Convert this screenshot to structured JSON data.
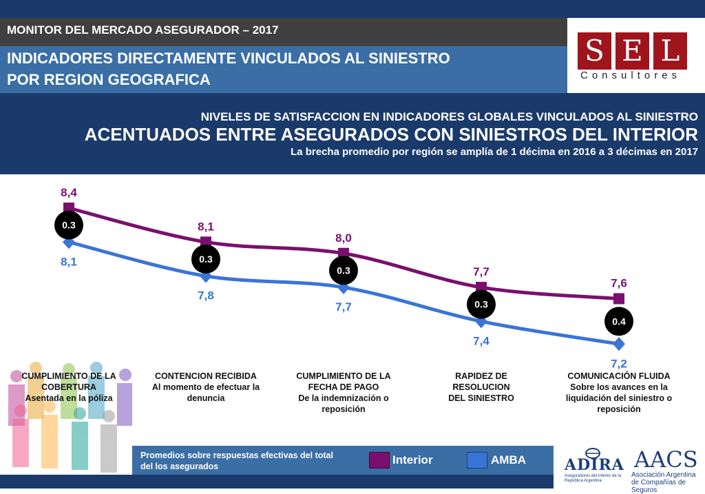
{
  "header": {
    "monitor": "MONITOR DEL MERCADO ASEGURADOR – 2017",
    "title_line1": "INDICADORES DIRECTAMENTE VINCULADOS AL SINIESTRO",
    "title_line2": "POR REGION GEOGRAFICA"
  },
  "logo": {
    "letters": [
      "S",
      "E",
      "L"
    ],
    "subtitle": "Consultores"
  },
  "subheader": {
    "line1": "NIVELES DE SATISFACCION EN INDICADORES GLOBALES VINCULADOS AL SINIESTRO",
    "line2": "ACENTUADOS ENTRE ASEGURADOS CON SINIESTROS DEL INTERIOR",
    "line3": "La brecha promedio por región se amplía de 1 décima en 2016 a 3 décimas en 2017"
  },
  "chart_data": {
    "type": "line",
    "categories": [
      {
        "title": "CUMPLIMIENTO DE LA COBERTURA",
        "detail": "Asentada en la póliza"
      },
      {
        "title": "CONTENCION RECIBIDA",
        "detail": "Al momento de efectuar la denuncia"
      },
      {
        "title": "CUMPLIMIENTO DE LA FECHA DE PAGO",
        "detail": "De la indemnización o reposición"
      },
      {
        "title": "RAPIDEZ DE RESOLUCION",
        "detail": "DEL SINIESTRO"
      },
      {
        "title": "COMUNICACIÓN FLUIDA",
        "detail": "Sobre los avances en la liquidación del siniestro o reposición"
      }
    ],
    "series": [
      {
        "name": "Interior",
        "color": "#7a0f6e",
        "marker": "square",
        "values": [
          8.4,
          8.1,
          8.0,
          7.7,
          7.6
        ],
        "labels": [
          "8,4",
          "8,1",
          "8,0",
          "7,7",
          "7,6"
        ]
      },
      {
        "name": "AMBA",
        "color": "#3a74d6",
        "marker": "diamond",
        "values": [
          8.1,
          7.8,
          7.7,
          7.4,
          7.2
        ],
        "labels": [
          "8,1",
          "7,8",
          "7,7",
          "7,4",
          "7,2"
        ]
      }
    ],
    "gaps": [
      "0.3",
      "0.3",
      "0.3",
      "0.3",
      "0.4"
    ],
    "legend_position": "bottom",
    "grid": false
  },
  "footer": {
    "note": "Promedios sobre respuestas efectivas del total del los asegurados"
  },
  "sponsors": {
    "adira": "ADIRA",
    "adira_sub": "Aseguradores del Interior de la República Argentina",
    "aacs": "AACS",
    "aacs_sub": "Asociación Argentina de Compañías de Seguros"
  }
}
